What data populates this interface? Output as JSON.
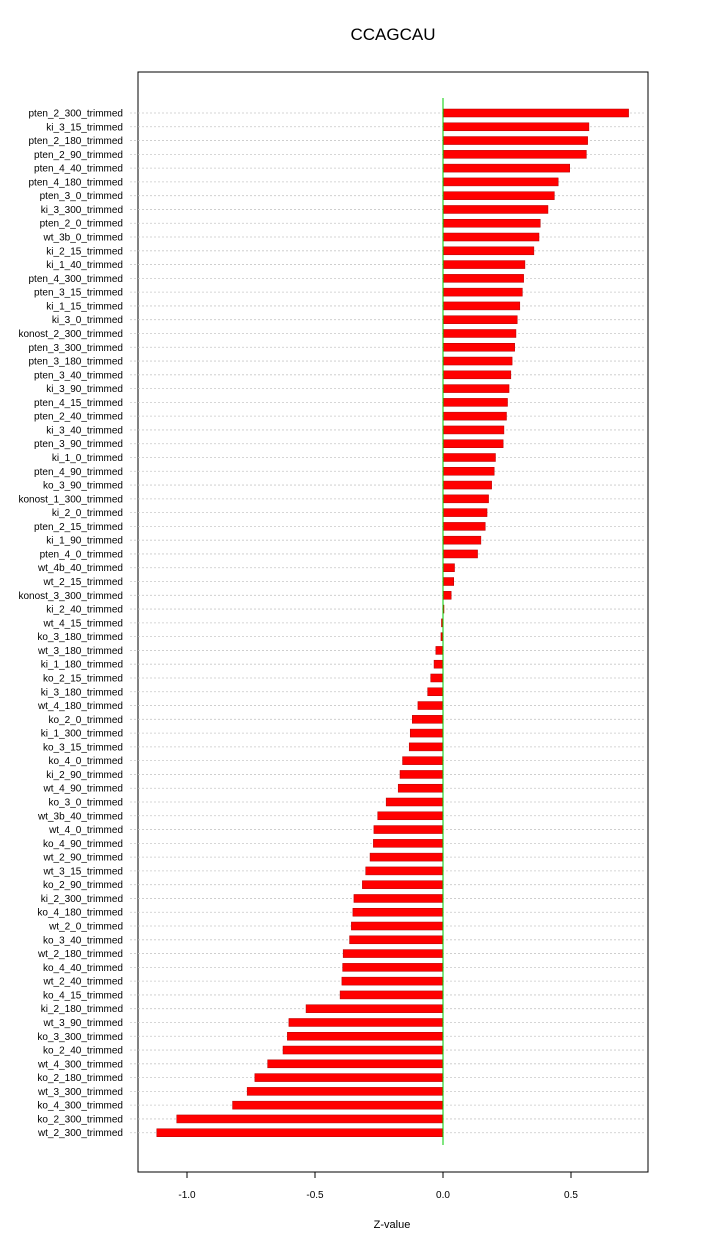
{
  "chart_data": {
    "type": "bar",
    "orientation": "horizontal",
    "title": "CCAGCAU",
    "xlabel": "Z-value",
    "ylabel": "",
    "xlim": [
      -1.12,
      0.73
    ],
    "xticks": [
      -1.0,
      -0.5,
      0.0,
      0.5
    ],
    "xtick_labels": [
      "-1.0",
      "-0.5",
      "0.0",
      "0.5"
    ],
    "grid": "horizontal dotted lines at each category",
    "bar_color": "#ff0000",
    "reference_line_color": "#00cc00",
    "categories": [
      "pten_2_300_trimmed",
      "ki_3_15_trimmed",
      "pten_2_180_trimmed",
      "pten_2_90_trimmed",
      "pten_4_40_trimmed",
      "pten_4_180_trimmed",
      "pten_3_0_trimmed",
      "ki_3_300_trimmed",
      "pten_2_0_trimmed",
      "wt_3b_0_trimmed",
      "ki_2_15_trimmed",
      "ki_1_40_trimmed",
      "pten_4_300_trimmed",
      "pten_3_15_trimmed",
      "ki_1_15_trimmed",
      "ki_3_0_trimmed",
      "konost_2_300_trimmed",
      "pten_3_300_trimmed",
      "pten_3_180_trimmed",
      "pten_3_40_trimmed",
      "ki_3_90_trimmed",
      "pten_4_15_trimmed",
      "pten_2_40_trimmed",
      "ki_3_40_trimmed",
      "pten_3_90_trimmed",
      "ki_1_0_trimmed",
      "pten_4_90_trimmed",
      "ko_3_90_trimmed",
      "konost_1_300_trimmed",
      "ki_2_0_trimmed",
      "pten_2_15_trimmed",
      "ki_1_90_trimmed",
      "pten_4_0_trimmed",
      "wt_4b_40_trimmed",
      "wt_2_15_trimmed",
      "konost_3_300_trimmed",
      "ki_2_40_trimmed",
      "wt_4_15_trimmed",
      "ko_3_180_trimmed",
      "wt_3_180_trimmed",
      "ki_1_180_trimmed",
      "ko_2_15_trimmed",
      "ki_3_180_trimmed",
      "wt_4_180_trimmed",
      "ko_2_0_trimmed",
      "ki_1_300_trimmed",
      "ko_3_15_trimmed",
      "ko_4_0_trimmed",
      "ki_2_90_trimmed",
      "wt_4_90_trimmed",
      "ko_3_0_trimmed",
      "wt_3b_40_trimmed",
      "wt_4_0_trimmed",
      "ko_4_90_trimmed",
      "wt_2_90_trimmed",
      "wt_3_15_trimmed",
      "ko_2_90_trimmed",
      "ki_2_300_trimmed",
      "ko_4_180_trimmed",
      "wt_2_0_trimmed",
      "ko_3_40_trimmed",
      "wt_2_180_trimmed",
      "ko_4_40_trimmed",
      "wt_2_40_trimmed",
      "ko_4_15_trimmed",
      "ki_2_180_trimmed",
      "wt_3_90_trimmed",
      "ko_3_300_trimmed",
      "ko_2_40_trimmed",
      "wt_4_300_trimmed",
      "ko_2_180_trimmed",
      "wt_3_300_trimmed",
      "ko_4_300_trimmed",
      "ko_2_300_trimmed",
      "wt_2_300_trimmed"
    ],
    "values": [
      0.725,
      0.57,
      0.565,
      0.56,
      0.495,
      0.45,
      0.435,
      0.41,
      0.38,
      0.375,
      0.355,
      0.32,
      0.315,
      0.31,
      0.3,
      0.29,
      0.285,
      0.28,
      0.27,
      0.265,
      0.258,
      0.252,
      0.248,
      0.238,
      0.235,
      0.205,
      0.2,
      0.19,
      0.178,
      0.172,
      0.165,
      0.148,
      0.135,
      0.045,
      0.042,
      0.032,
      0.002,
      -0.006,
      -0.008,
      -0.028,
      -0.035,
      -0.048,
      -0.06,
      -0.098,
      -0.12,
      -0.128,
      -0.132,
      -0.158,
      -0.168,
      -0.175,
      -0.222,
      -0.255,
      -0.27,
      -0.272,
      -0.285,
      -0.302,
      -0.315,
      -0.348,
      -0.352,
      -0.358,
      -0.365,
      -0.39,
      -0.392,
      -0.395,
      -0.402,
      -0.535,
      -0.602,
      -0.608,
      -0.625,
      -0.685,
      -0.735,
      -0.765,
      -0.822,
      -1.04,
      -1.118
    ]
  }
}
